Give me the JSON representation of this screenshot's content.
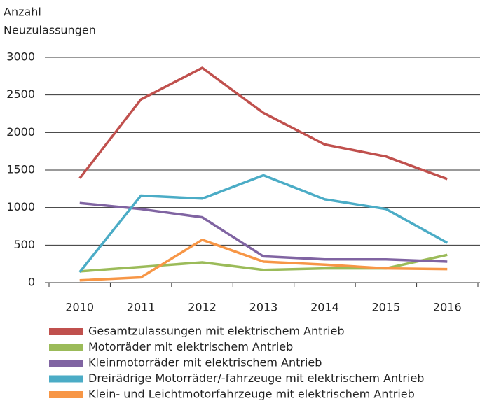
{
  "chart_data": {
    "type": "line",
    "y_label": [
      "Anzahl",
      "Neuzulassungen"
    ],
    "categories": [
      "2010",
      "2011",
      "2012",
      "2013",
      "2014",
      "2015",
      "2016"
    ],
    "ylim": [
      0,
      3000
    ],
    "yticks": [
      0,
      500,
      1000,
      1500,
      2000,
      2500,
      3000
    ],
    "grid": true,
    "series": [
      {
        "name": "Gesamtzulassungen mit elektrischem Antrieb",
        "color": "#c0504d",
        "values": [
          1390,
          2440,
          2860,
          2260,
          1840,
          1680,
          1380
        ]
      },
      {
        "name": "Motorräder mit elektrischem Antrieb",
        "color": "#9bbb59",
        "values": [
          150,
          210,
          270,
          170,
          190,
          190,
          370
        ]
      },
      {
        "name": "Kleinmotorräder mit elektrischem Antrieb",
        "color": "#8064a2",
        "values": [
          1060,
          980,
          870,
          350,
          310,
          310,
          280
        ]
      },
      {
        "name": "Dreirädrige Motorräder/-fahrzeuge mit elektrischem Antrieb",
        "color": "#4bacc6",
        "values": [
          140,
          1160,
          1120,
          1430,
          1110,
          980,
          530
        ]
      },
      {
        "name": "Klein- und Leichtmotorfahrzeuge mit elektrischem Antrieb",
        "color": "#f79646",
        "values": [
          30,
          70,
          570,
          280,
          240,
          190,
          180
        ]
      }
    ]
  }
}
